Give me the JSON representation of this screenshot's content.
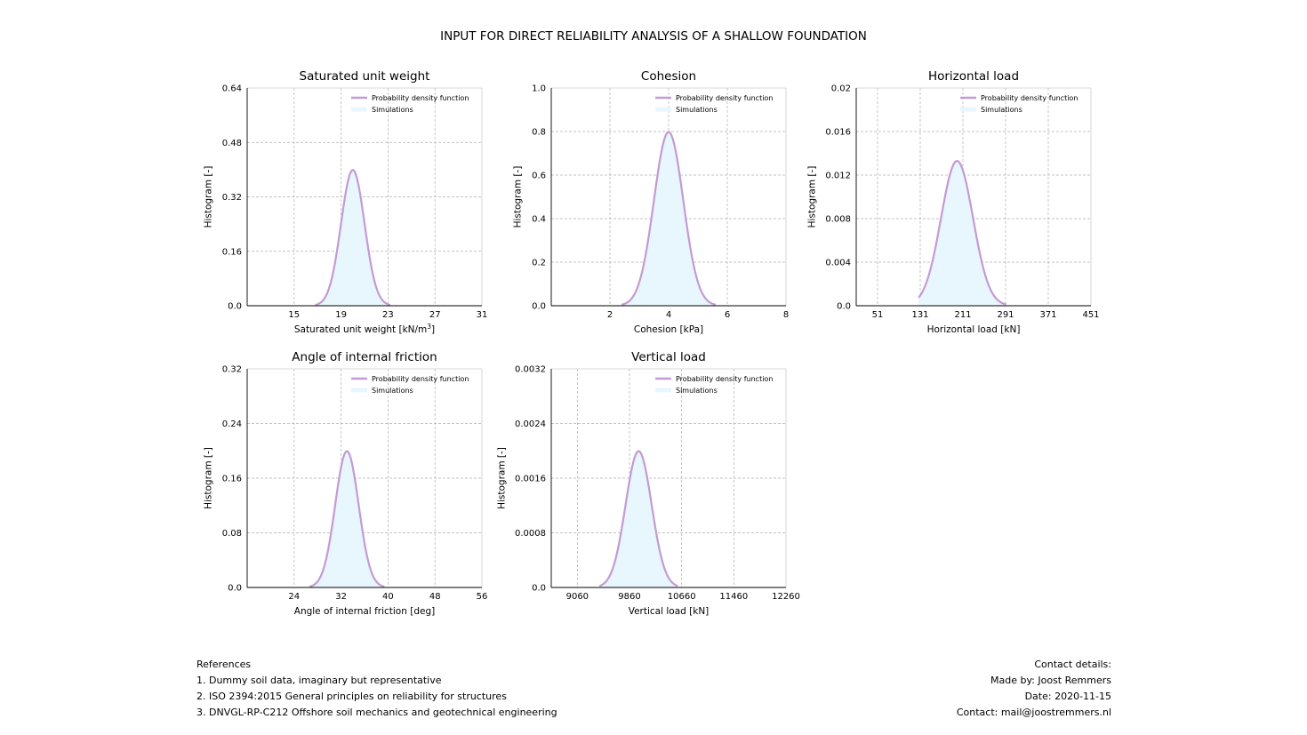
{
  "figure": {
    "title": "INPUT FOR DIRECT RELIABILITY ANALYSIS OF A SHALLOW FOUNDATION"
  },
  "colors": {
    "pdf_line": "#c39bd3",
    "hist_fill": "#e8f6fd",
    "grid": "#b0b0b0"
  },
  "chart_data": [
    {
      "type": "area",
      "title": "Saturated unit weight",
      "xlabel": "Saturated unit weight [kN/m",
      "xlabel_sup": "3",
      "xlabel_end": "]",
      "ylabel": "Histogram [-]",
      "xlim": [
        11,
        31
      ],
      "ylim": [
        0,
        0.64
      ],
      "xticks": [
        15,
        19,
        23,
        27,
        31
      ],
      "xtick_labels": [
        "15",
        "19",
        "23",
        "27",
        "31"
      ],
      "yticks": [
        0,
        0.16,
        0.32,
        0.48,
        0.64
      ],
      "ytick_labels": [
        "0.0",
        "0.16",
        "0.32",
        "0.48",
        "0.64"
      ],
      "legend": [
        "Probability density function",
        "Simulations"
      ],
      "legend_position": "top-right",
      "grid": true,
      "series": [
        {
          "name": "Probability density function",
          "distribution": "normal",
          "mean": 20,
          "std": 1,
          "x_range": [
            16.8,
            23.2
          ]
        }
      ]
    },
    {
      "type": "area",
      "title": "Cohesion",
      "xlabel": "Cohesion [kPa]",
      "ylabel": "Histogram [-]",
      "xlim": [
        0,
        8
      ],
      "ylim": [
        0,
        1.0
      ],
      "xticks": [
        2,
        4,
        6,
        8
      ],
      "xtick_labels": [
        "2",
        "4",
        "6",
        "8"
      ],
      "yticks": [
        0,
        0.2,
        0.4,
        0.6,
        0.8,
        1.0
      ],
      "ytick_labels": [
        "0.0",
        "0.2",
        "0.4",
        "0.6",
        "0.8",
        "1.0"
      ],
      "legend": [
        "Probability density function",
        "Simulations"
      ],
      "legend_position": "top-right",
      "grid": true,
      "series": [
        {
          "name": "Probability density function",
          "distribution": "normal",
          "mean": 4,
          "std": 0.5,
          "x_range": [
            2.4,
            5.6
          ]
        }
      ]
    },
    {
      "type": "area",
      "title": "Horizontal load",
      "xlabel": "Horizontal load [kN]",
      "ylabel": "Histogram [-]",
      "xlim": [
        11,
        451
      ],
      "ylim": [
        0,
        0.02
      ],
      "xticks": [
        51,
        131,
        211,
        291,
        371,
        451
      ],
      "xtick_labels": [
        "51",
        "131",
        "211",
        "291",
        "371",
        "451"
      ],
      "yticks": [
        0,
        0.004,
        0.008,
        0.012,
        0.016,
        0.02
      ],
      "ytick_labels": [
        "0.0",
        "0.004",
        "0.008",
        "0.012",
        "0.016",
        "0.02"
      ],
      "legend": [
        "Probability density function",
        "Simulations"
      ],
      "legend_position": "top-right",
      "grid": true,
      "series": [
        {
          "name": "Probability density function",
          "distribution": "normal",
          "mean": 200,
          "std": 30,
          "x_range": [
            128,
            292
          ]
        }
      ]
    },
    {
      "type": "area",
      "title": "Angle of internal friction",
      "xlabel": "Angle of internal friction [deg]",
      "ylabel": "Histogram [-]",
      "xlim": [
        16,
        56
      ],
      "ylim": [
        0,
        0.32
      ],
      "xticks": [
        24,
        32,
        40,
        48,
        56
      ],
      "xtick_labels": [
        "24",
        "32",
        "40",
        "48",
        "56"
      ],
      "yticks": [
        0,
        0.08,
        0.16,
        0.24,
        0.32
      ],
      "ytick_labels": [
        "0.0",
        "0.08",
        "0.16",
        "0.24",
        "0.32"
      ],
      "legend": [
        "Probability density function",
        "Simulations"
      ],
      "legend_position": "top-right",
      "grid": true,
      "series": [
        {
          "name": "Probability density function",
          "distribution": "normal",
          "mean": 33,
          "std": 2,
          "x_range": [
            26.6,
            39.4
          ]
        }
      ]
    },
    {
      "type": "area",
      "title": "Vertical load",
      "xlabel": "Vertical load [kN]",
      "ylabel": "Histogram [-]",
      "xlim": [
        8660,
        12260
      ],
      "ylim": [
        0,
        0.0032
      ],
      "xticks": [
        9060,
        9860,
        10660,
        11460,
        12260
      ],
      "xtick_labels": [
        "9060",
        "9860",
        "10660",
        "11460",
        "12260"
      ],
      "yticks": [
        0,
        0.0008,
        0.0016,
        0.0024,
        0.0032
      ],
      "ytick_labels": [
        "0.0",
        "0.0008",
        "0.0016",
        "0.0024",
        "0.0032"
      ],
      "legend": [
        "Probability density function",
        "Simulations"
      ],
      "legend_position": "top-right",
      "grid": true,
      "series": [
        {
          "name": "Probability density function",
          "distribution": "normal",
          "mean": 10000,
          "std": 200,
          "x_range": [
            9400,
            10600
          ]
        }
      ]
    }
  ],
  "references": {
    "heading": "References",
    "items": [
      "1. Dummy soil data, imaginary but representative",
      "2. ISO 2394:2015 General principles on reliability for structures",
      "3. DNVGL-RP-C212 Offshore soil mechanics and geotechnical engineering"
    ]
  },
  "contact": {
    "heading": "Contact details:",
    "made_by": "Made by: Joost Remmers",
    "date": "Date: 2020-11-15",
    "email": "Contact: mail@joostremmers.nl"
  }
}
